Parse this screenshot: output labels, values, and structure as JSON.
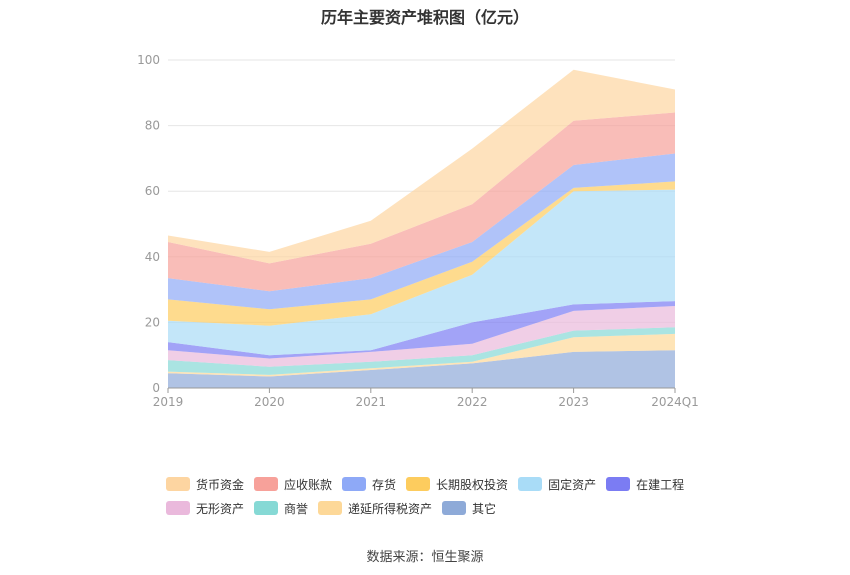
{
  "chart_data": {
    "type": "area",
    "stacked": true,
    "title": "历年主要资产堆积图（亿元）",
    "categories": [
      "2019",
      "2020",
      "2021",
      "2022",
      "2023",
      "2024Q1"
    ],
    "ylim": [
      0,
      100
    ],
    "yticks": [
      0,
      20,
      40,
      60,
      80,
      100
    ],
    "grid": true,
    "legend_position": "bottom",
    "series": [
      {
        "name": "其它",
        "color": "#8eaad8",
        "values": [
          4.5,
          3.5,
          5.5,
          7.5,
          11,
          11.5
        ]
      },
      {
        "name": "递延所得税资产",
        "color": "#fdd898",
        "values": [
          0.5,
          0.5,
          0.5,
          0.5,
          4.5,
          5
        ]
      },
      {
        "name": "商誉",
        "color": "#86d9d5",
        "values": [
          3.5,
          2.5,
          2,
          2,
          2,
          2
        ]
      },
      {
        "name": "无形资产",
        "color": "#eab9dc",
        "values": [
          3,
          2.5,
          3,
          3.5,
          6,
          6.5
        ]
      },
      {
        "name": "在建工程",
        "color": "#7b7cf3",
        "values": [
          2.5,
          1,
          0.5,
          6.5,
          2,
          1.5
        ]
      },
      {
        "name": "固定资产",
        "color": "#a9dcf7",
        "values": [
          6.5,
          9,
          11,
          14.5,
          34.5,
          34
        ]
      },
      {
        "name": "长期股权投资",
        "color": "#fdcc5e",
        "values": [
          6.5,
          5,
          4.5,
          4,
          1,
          2.5
        ]
      },
      {
        "name": "存货",
        "color": "#8ea9f7",
        "values": [
          6.5,
          5.5,
          6.5,
          6,
          7,
          8.5
        ]
      },
      {
        "name": "应收账款",
        "color": "#f7a19a",
        "values": [
          11,
          8.5,
          10.5,
          11.5,
          13.5,
          12.5
        ]
      },
      {
        "name": "货币资金",
        "color": "#fdd5a1",
        "values": [
          2,
          3.5,
          7,
          17,
          15.5,
          7
        ]
      }
    ],
    "legend_rows": [
      [
        "货币资金",
        "应收账款",
        "存货",
        "长期股权投资",
        "固定资产",
        "在建工程"
      ],
      [
        "无形资产",
        "商誉",
        "递延所得税资产",
        "其它"
      ]
    ]
  },
  "source": "数据来源：恒生聚源"
}
